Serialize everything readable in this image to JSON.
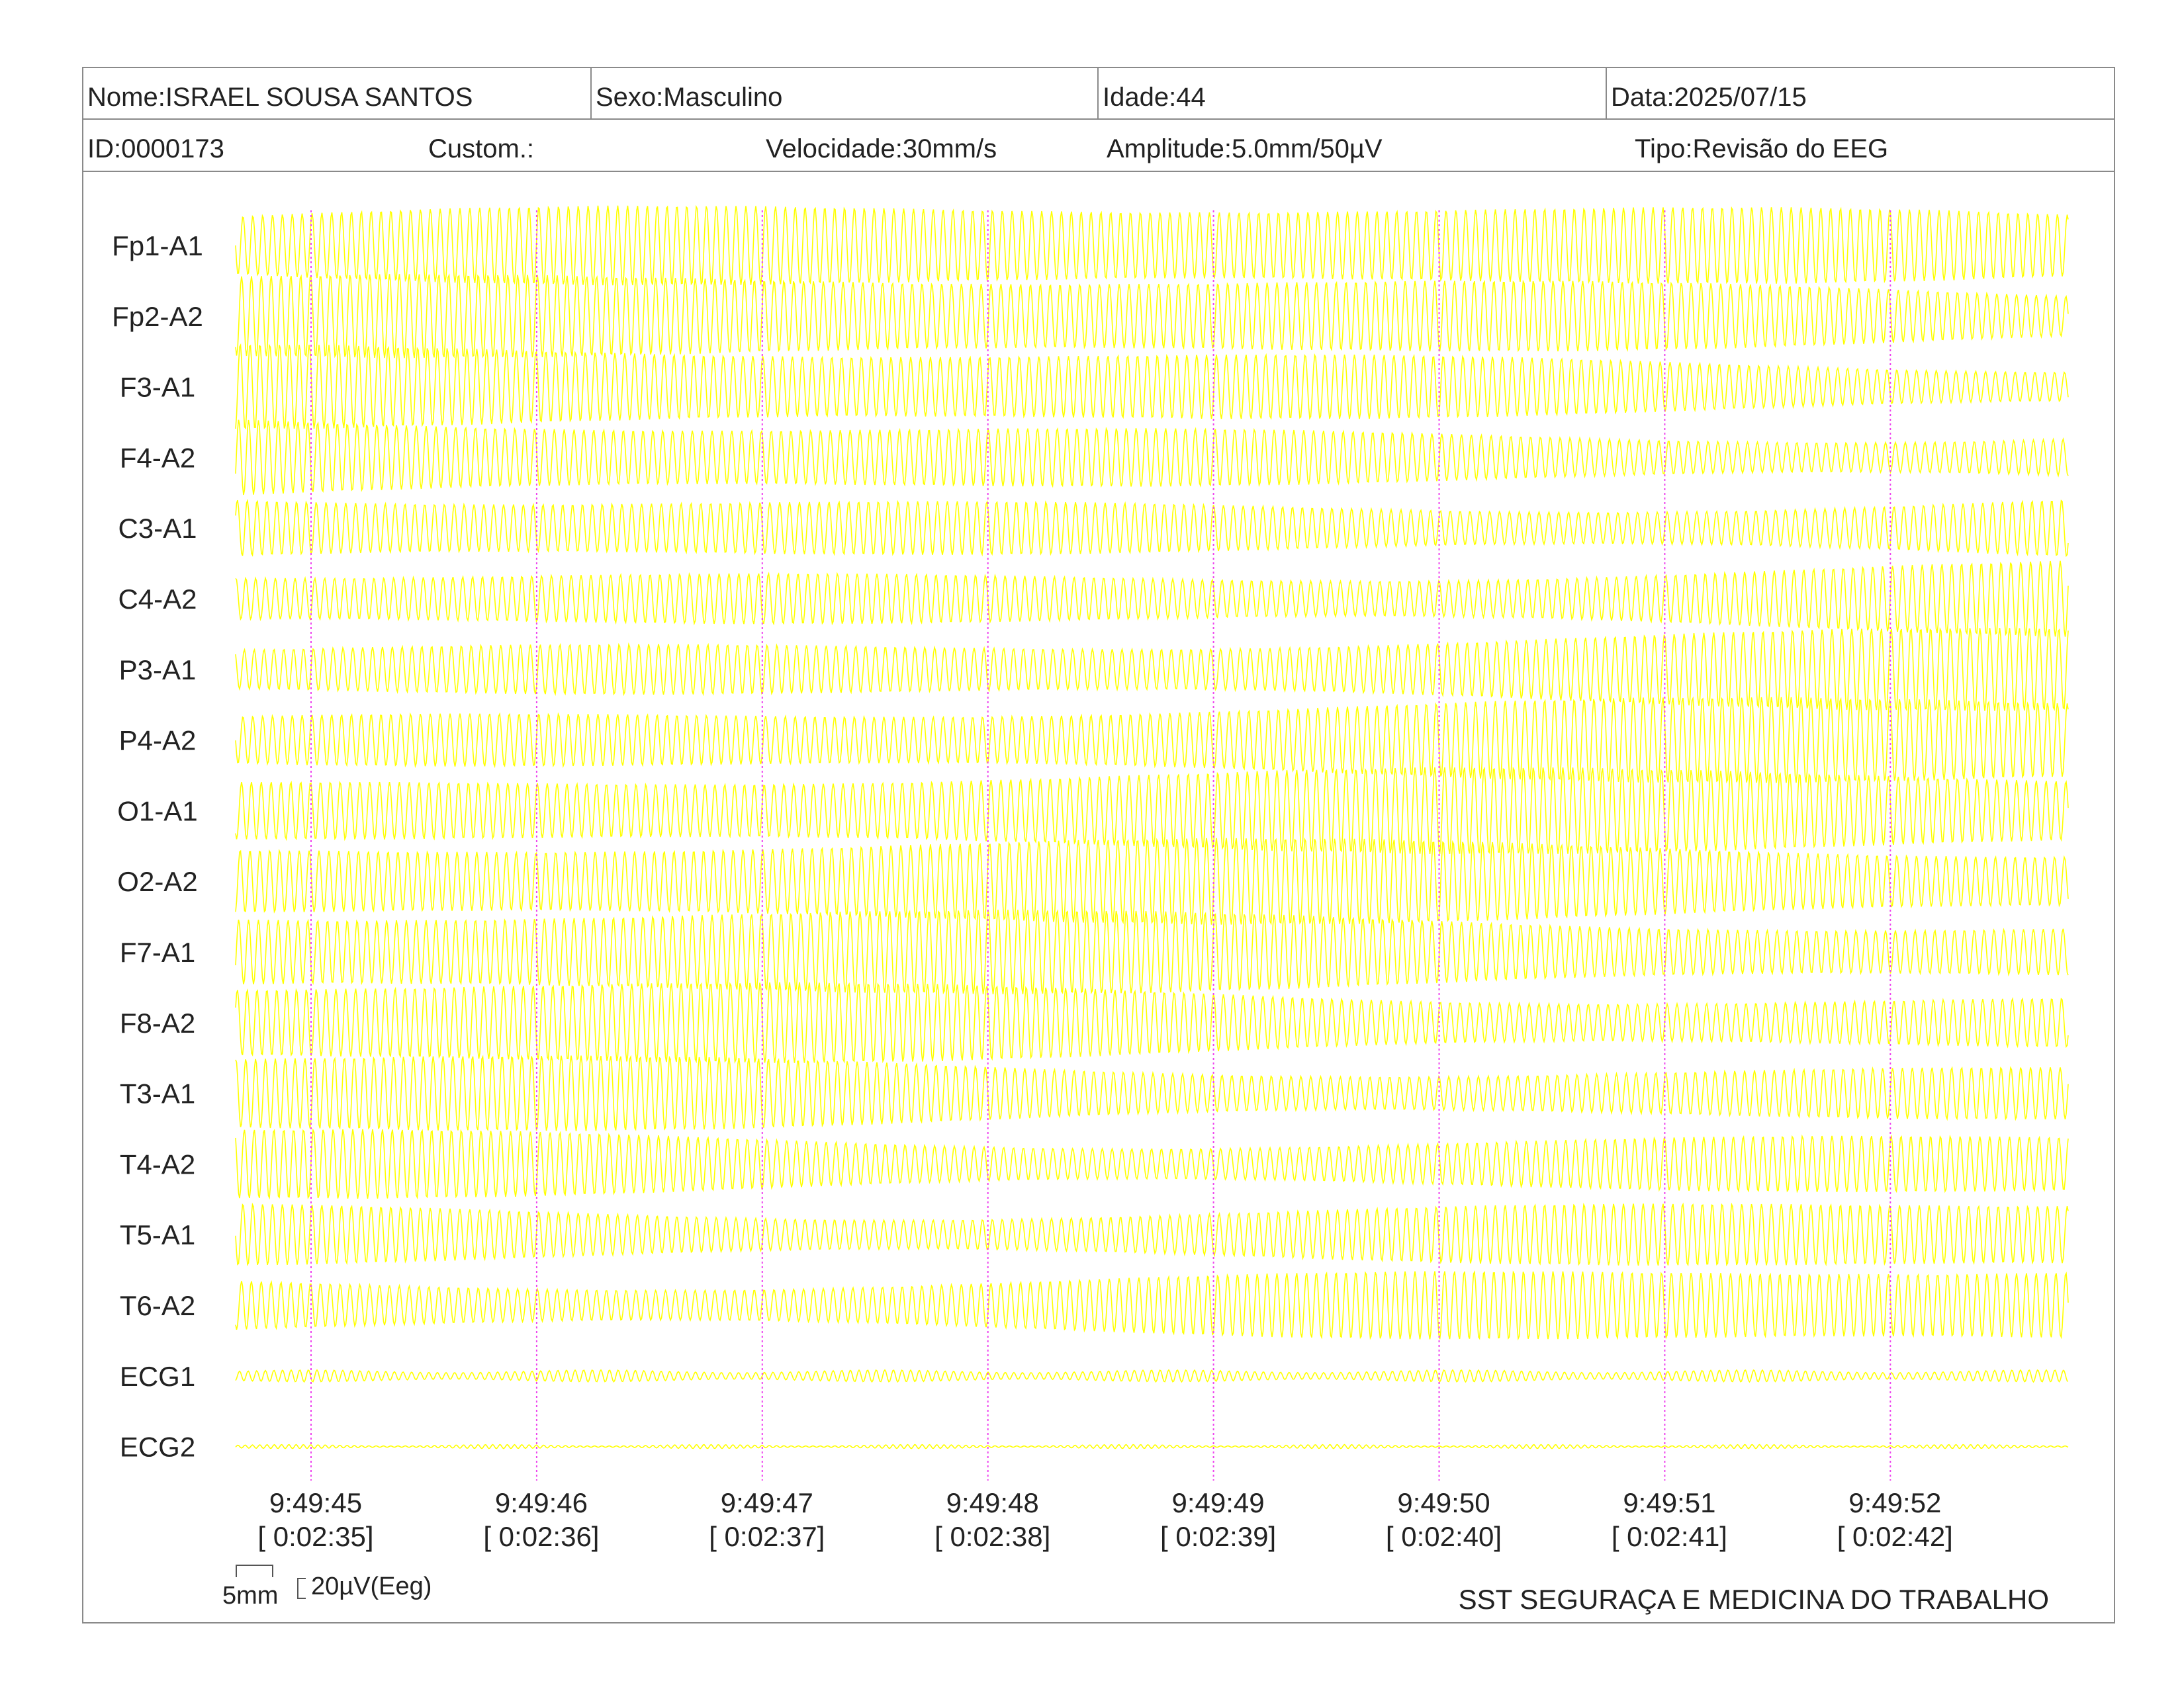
{
  "header": {
    "nome": "Nome:ISRAEL SOUSA SANTOS",
    "sexo": "Sexo:Masculino",
    "idade": "Idade:44",
    "data": "Data:2025/07/15",
    "id": "ID:0000173",
    "custom": "Custom.:",
    "velocidade": "Velocidade:30mm/s",
    "amplitude": "Amplitude:5.0mm/50µV",
    "tipo": "Tipo:Revisão do EEG"
  },
  "scale": {
    "time_label": "5mm",
    "amp_label": "20µV(Eeg)"
  },
  "footer": {
    "organization": "SST SEGURAÇA E MEDICINA DO TRABALHO"
  },
  "colors": {
    "trace": "#ffff00",
    "marker": "#ee44ee",
    "border": "#8a8a8a",
    "text": "#222222"
  },
  "chart_data": {
    "type": "line",
    "title": "",
    "channels": [
      "Fp1-A1",
      "Fp2-A2",
      "F3-A1",
      "F4-A2",
      "C3-A1",
      "C4-A2",
      "P3-A1",
      "P4-A2",
      "O1-A1",
      "O2-A2",
      "F7-A1",
      "F8-A2",
      "T3-A1",
      "T4-A2",
      "T5-A1",
      "T6-A2",
      "ECG1",
      "ECG2"
    ],
    "time_markers": [
      {
        "clock": "9:49:45",
        "elapsed": "[ 0:02:35]"
      },
      {
        "clock": "9:49:46",
        "elapsed": "[ 0:02:36]"
      },
      {
        "clock": "9:49:47",
        "elapsed": "[ 0:02:37]"
      },
      {
        "clock": "9:49:48",
        "elapsed": "[ 0:02:38]"
      },
      {
        "clock": "9:49:49",
        "elapsed": "[ 0:02:39]"
      },
      {
        "clock": "9:49:50",
        "elapsed": "[ 0:02:40]"
      },
      {
        "clock": "9:49:51",
        "elapsed": "[ 0:02:41]"
      },
      {
        "clock": "9:49:52",
        "elapsed": "[ 0:02:42]"
      }
    ],
    "grid": false,
    "legend": "none"
  }
}
